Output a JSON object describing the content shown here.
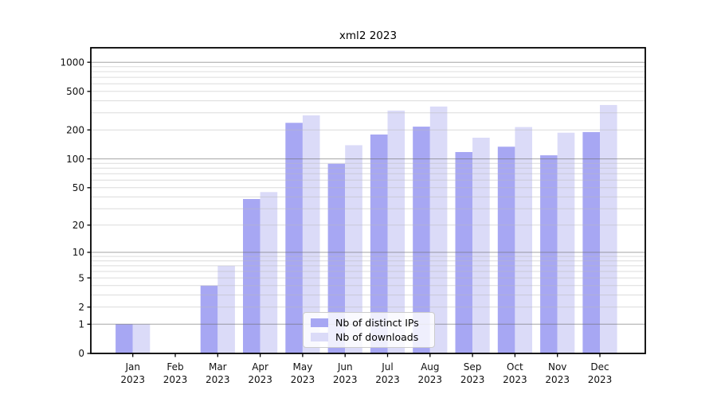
{
  "chart_data": {
    "type": "bar",
    "title": "xml2 2023",
    "categories": [
      "Jan",
      "Feb",
      "Mar",
      "Apr",
      "May",
      "Jun",
      "Jul",
      "Aug",
      "Sep",
      "Oct",
      "Nov",
      "Dec"
    ],
    "year_label": "2023",
    "series": [
      {
        "name": "Nb of distinct IPs",
        "color": "#a7a7f3",
        "values": [
          1,
          0,
          4,
          38,
          237,
          89,
          179,
          216,
          118,
          134,
          109,
          190
        ]
      },
      {
        "name": "Nb of downloads",
        "color": "#dbdbf8",
        "values": [
          1,
          0,
          7,
          45,
          283,
          139,
          317,
          349,
          166,
          214,
          187,
          362
        ]
      }
    ],
    "y_axis": {
      "scale": "log10(1+y)",
      "ticks": [
        0,
        1,
        2,
        5,
        10,
        20,
        50,
        100,
        200,
        500,
        1000
      ],
      "major_gridlines": [
        1,
        10,
        100,
        1000
      ],
      "ylim": [
        0,
        1440
      ]
    },
    "grid": "on",
    "legend": {
      "location": "lower center"
    },
    "colors": {
      "distinct_ips": "#a7a7f3",
      "downloads": "#dbdbf8",
      "major_grid": "#aaaaaa",
      "minor_grid": "#e6e6e6",
      "axis": "#000000"
    }
  }
}
